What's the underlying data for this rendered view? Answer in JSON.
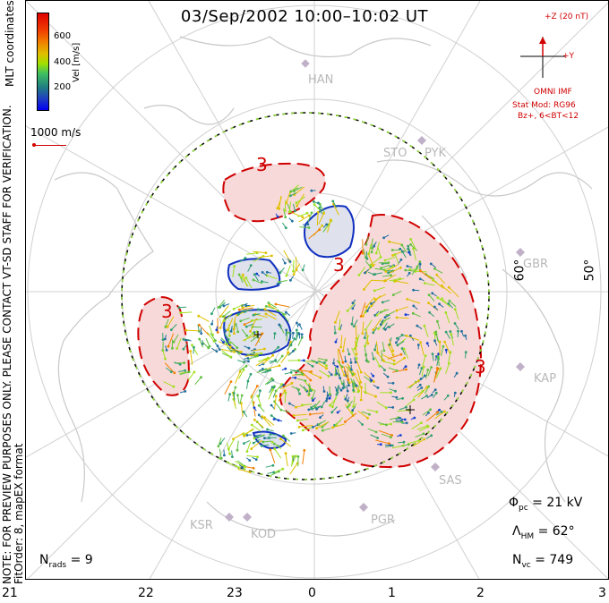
{
  "title": "03/Sep/2002 10:00–10:02 UT",
  "side_note": {
    "line1": "NOTE: FOR PREVIEW PURPOSES ONLY. PLEASE CONTACT VT-SD STAFF FOR VERIFICATION.",
    "line2": "FitOrder: 8, mapEX format"
  },
  "coordinates_label": "MLT coordinates",
  "colorbar": {
    "unit": "Vel [m/s]",
    "ticks": [
      "600",
      "400",
      "200"
    ],
    "colors": [
      "#e00000",
      "#f08000",
      "#a0e000",
      "#208080",
      "#0000f0"
    ]
  },
  "velocity_reference": "1000 m/s",
  "imf": {
    "z_label": "+Z (20 nT)",
    "y_label": "+Y",
    "source": "OMNI IMF",
    "stat_model": "Stat Mod: RG96",
    "condition": "Bz+, 6<BT<12"
  },
  "stats": {
    "nrads_sym": "N",
    "nrads_sub": "rads",
    "nrads_value": "= 9",
    "phi_sym": "Φ",
    "phi_sub": "pc",
    "phi_value": "= 21 kV",
    "lambda_sym": "Λ",
    "lambda_sub": "HM",
    "lambda_value": "= 62°",
    "nvc_sym": "N",
    "nvc_sub": "vc",
    "nvc_value": "= 749"
  },
  "mlt_ticks": [
    "21",
    "22",
    "23",
    "0",
    "1",
    "2",
    "3"
  ],
  "latitude_labels": [
    "60°",
    "50°"
  ],
  "stations": [
    "HAN",
    "STO",
    "PYK",
    "GBR",
    "KAP",
    "SAS",
    "PGR",
    "KOD",
    "KSR"
  ],
  "contour_labels": [
    "3",
    "3",
    "3",
    "3"
  ],
  "colors": {
    "positive_cell": "#f7d9d9",
    "negative_cell": "#dfe1ec",
    "positive_line": "#d00000",
    "negative_line": "#1030c0",
    "coastline": "#c8c8c8",
    "imf_vector": "#d00000"
  }
}
